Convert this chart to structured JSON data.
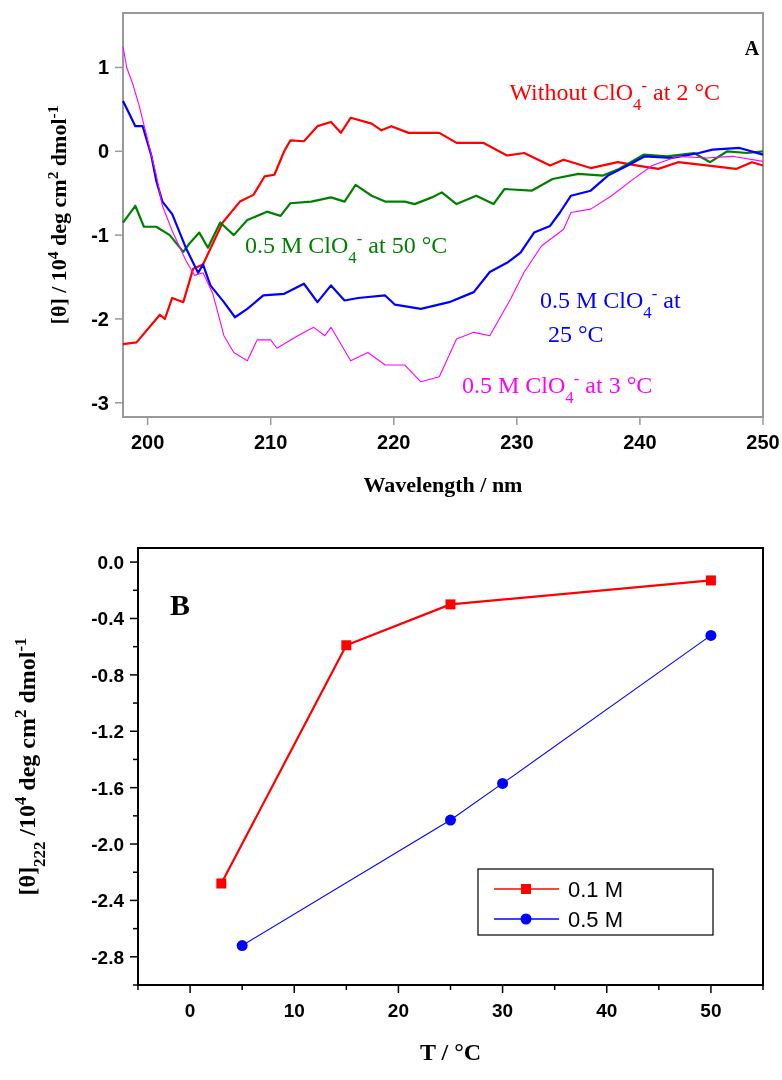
{
  "chart_data": [
    {
      "type": "line",
      "xlabel": "Wavelength / nm",
      "ylabel": "[θ] / 10$^{4}$ deg cm$^{2}$ dmol$^{-1}$",
      "annotations": [
        "A"
      ],
      "xlim": [
        198,
        250
      ],
      "ylim": [
        -3.17,
        1.65
      ],
      "xticks": [
        200,
        210,
        220,
        230,
        240,
        250
      ],
      "yticks": [
        1,
        0,
        -1,
        -2,
        -3
      ],
      "grid": false,
      "legend": false,
      "marker": "none",
      "line_style": "solid",
      "series": [
        {
          "name": "Without ClO$_{4}$$^{-}$ at 2 °C",
          "color": "#ff0000",
          "x": [
            198,
            199.1,
            201,
            201.4,
            202,
            202.9,
            203.7,
            204.5,
            206.1,
            207.5,
            208.6,
            209.5,
            210.3,
            211.1,
            211.6,
            212.7,
            213.8,
            214.9,
            215.7,
            216.5,
            218.2,
            219,
            219.8,
            221.2,
            222.5,
            223.7,
            225.1,
            227.3,
            229.2,
            230.6,
            232.7,
            233.8,
            236,
            238.2,
            239.8,
            241.5,
            243.1,
            245.6,
            247.8,
            249.1,
            250
          ],
          "values": [
            -2.3,
            -2.28,
            -1.95,
            -2.0,
            -1.75,
            -1.8,
            -1.4,
            -1.35,
            -0.85,
            -0.6,
            -0.52,
            -0.3,
            -0.28,
            0.0,
            0.13,
            0.12,
            0.3,
            0.35,
            0.22,
            0.4,
            0.33,
            0.25,
            0.3,
            0.22,
            0.22,
            0.22,
            0.1,
            0.1,
            -0.05,
            -0.02,
            -0.17,
            -0.1,
            -0.2,
            -0.13,
            -0.17,
            -0.21,
            -0.13,
            -0.17,
            -0.21,
            -0.13,
            -0.17
          ]
        },
        {
          "name": "0.5 M ClO$_{4}$$^{-}$ at 50 °C",
          "color": "#008000",
          "x": [
            198,
            199,
            199.7,
            200.7,
            201.8,
            202.9,
            203.4,
            204.2,
            204.9,
            205.9,
            207,
            208.1,
            209.7,
            210.8,
            211.6,
            213.3,
            214.9,
            216,
            216.9,
            218.2,
            219.3,
            220.9,
            221.7,
            223.1,
            223.9,
            225.1,
            226.7,
            228.1,
            229,
            231.2,
            232.9,
            235,
            237,
            238.3,
            240.3,
            242.2,
            244.4,
            245.7,
            247.1,
            248.7,
            250
          ],
          "values": [
            -0.85,
            -0.65,
            -0.9,
            -0.9,
            -1.0,
            -1.2,
            -1.1,
            -0.97,
            -1.15,
            -0.85,
            -1.0,
            -0.82,
            -0.72,
            -0.77,
            -0.62,
            -0.6,
            -0.55,
            -0.6,
            -0.4,
            -0.53,
            -0.6,
            -0.6,
            -0.63,
            -0.55,
            -0.49,
            -0.63,
            -0.53,
            -0.63,
            -0.45,
            -0.47,
            -0.33,
            -0.27,
            -0.29,
            -0.21,
            -0.04,
            -0.06,
            -0.02,
            -0.13,
            0.0,
            -0.02,
            0.0
          ]
        },
        {
          "name": "0.5 M ClO$_{4}$$^{-}$ at 25 °C",
          "color": "#0000ff",
          "x": [
            198,
            198.5,
            199,
            199.6,
            200.3,
            200.7,
            201.2,
            202,
            203.1,
            204.1,
            204.5,
            205.1,
            206.2,
            207.1,
            208.1,
            209.4,
            211.1,
            212.7,
            213.8,
            214.9,
            216,
            217.1,
            219.3,
            220.1,
            222.2,
            224.5,
            226.5,
            227.8,
            229.2,
            230.3,
            231.4,
            232.7,
            233.5,
            234.4,
            236,
            237.4,
            239,
            240.4,
            242.6,
            244.8,
            245.9,
            248.1,
            250
          ],
          "values": [
            0.6,
            0.45,
            0.3,
            0.3,
            -0.05,
            -0.35,
            -0.6,
            -0.75,
            -1.15,
            -1.45,
            -1.35,
            -1.6,
            -1.8,
            -1.98,
            -1.88,
            -1.72,
            -1.7,
            -1.58,
            -1.8,
            -1.6,
            -1.78,
            -1.75,
            -1.72,
            -1.83,
            -1.88,
            -1.8,
            -1.68,
            -1.44,
            -1.33,
            -1.21,
            -0.97,
            -0.89,
            -0.73,
            -0.53,
            -0.47,
            -0.29,
            -0.17,
            -0.06,
            -0.08,
            -0.02,
            0.02,
            0.04,
            -0.04
          ]
        },
        {
          "name": "0.5 M ClO$_{4}$$^{-}$ at 3 °C",
          "color": "#ff00ff",
          "x": [
            198,
            198.3,
            198.8,
            199.3,
            199.9,
            200.7,
            201.2,
            202,
            203.1,
            203.8,
            204.5,
            205.3,
            206.2,
            207,
            208.1,
            208.9,
            210,
            210.5,
            212.2,
            213.5,
            214.4,
            214.9,
            216.5,
            217.9,
            219.3,
            220.9,
            222.2,
            223.7,
            225.1,
            226.5,
            227.8,
            229.5,
            230.6,
            232,
            233.8,
            234.4,
            236,
            237.7,
            239.3,
            241,
            243.1,
            245.4,
            247.5,
            250
          ],
          "values": [
            1.25,
            1.0,
            0.8,
            0.55,
            0.2,
            -0.28,
            -0.65,
            -0.95,
            -1.3,
            -1.48,
            -1.45,
            -1.7,
            -2.2,
            -2.4,
            -2.5,
            -2.25,
            -2.25,
            -2.35,
            -2.2,
            -2.1,
            -2.2,
            -2.1,
            -2.5,
            -2.4,
            -2.55,
            -2.55,
            -2.75,
            -2.69,
            -2.24,
            -2.16,
            -2.2,
            -1.76,
            -1.44,
            -1.13,
            -0.93,
            -0.73,
            -0.69,
            -0.53,
            -0.35,
            -0.17,
            -0.06,
            -0.08,
            -0.06,
            -0.12
          ]
        }
      ]
    },
    {
      "type": "line",
      "xlabel": "T / °C",
      "ylabel": "[θ]$_{222}$ /10$^{4}$ deg cm$^{2}$ dmol$^{-1}$",
      "annotations": [
        "B"
      ],
      "xlim": [
        -5,
        55
      ],
      "ylim": [
        -3.0,
        0.1
      ],
      "xticks": [
        {
          "value": -5,
          "label": null
        },
        0,
        {
          "value": 5,
          "label": null
        },
        10,
        {
          "value": 15,
          "label": null
        },
        20,
        {
          "value": 25,
          "label": null
        },
        30,
        {
          "value": 35,
          "label": null
        },
        40,
        {
          "value": 45,
          "label": null
        },
        50,
        {
          "value": 55,
          "label": null
        }
      ],
      "yticks": [
        {
          "value": 0,
          "label": "0.0"
        },
        {
          "value": -0.2,
          "label": null
        },
        -0.4,
        {
          "value": -0.6,
          "label": null
        },
        -0.8,
        {
          "value": -1.0,
          "label": null
        },
        -1.2,
        {
          "value": -1.4,
          "label": null
        },
        -1.6,
        {
          "value": -1.8,
          "label": null
        },
        {
          "value": -2.0,
          "label": "-2.0"
        },
        {
          "value": -2.2,
          "label": null
        },
        -2.4,
        {
          "value": -2.6,
          "label": null
        },
        -2.8,
        {
          "value": -3.0,
          "label": null
        }
      ],
      "grid": false,
      "legend": "bottom right",
      "line_style": "solid",
      "series": [
        {
          "name": "0.1 M",
          "color": "#ff0000",
          "marker": "square",
          "x": [
            3,
            15,
            25,
            50
          ],
          "values": [
            -2.28,
            -0.59,
            -0.3,
            -0.13
          ]
        },
        {
          "name": "0.5 M",
          "color": "#0000ff",
          "marker": "circle",
          "x": [
            5,
            25,
            30,
            50
          ],
          "values": [
            -2.72,
            -1.83,
            -1.57,
            -0.52
          ]
        }
      ]
    }
  ]
}
